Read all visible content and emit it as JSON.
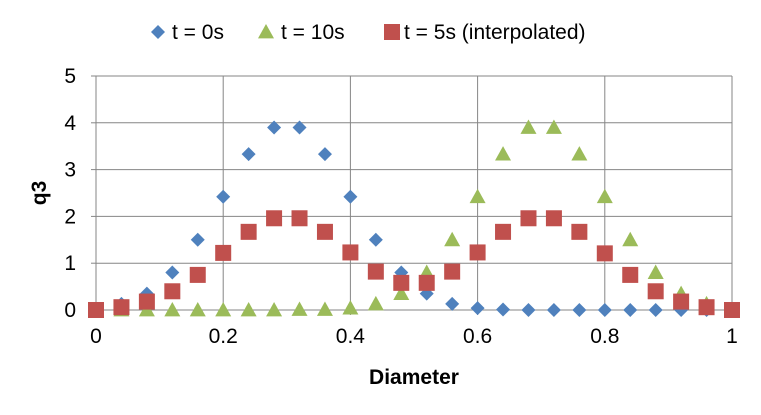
{
  "chart_data": {
    "type": "scatter",
    "title": "",
    "xlabel": "Diameter",
    "ylabel": "q3",
    "xlim": [
      0,
      1
    ],
    "ylim": [
      0,
      5
    ],
    "x_ticks": [
      0,
      0.2,
      0.4,
      0.6,
      0.8,
      1
    ],
    "x_tick_labels": [
      "0",
      "0.2",
      "0.4",
      "0.6",
      "0.8",
      "1"
    ],
    "y_ticks": [
      0,
      1,
      2,
      3,
      4,
      5
    ],
    "y_tick_labels": [
      "0",
      "1",
      "2",
      "3",
      "4",
      "5"
    ],
    "grid": "major gridlines on both axes",
    "legend_position": "top",
    "series": [
      {
        "name": "t = 0s",
        "marker": "diamond",
        "color": "#4F81BD",
        "x": [
          0,
          0.04,
          0.08,
          0.12,
          0.16,
          0.2,
          0.24,
          0.28,
          0.32,
          0.36,
          0.4,
          0.44,
          0.48,
          0.52,
          0.56,
          0.6,
          0.64,
          0.68,
          0.72,
          0.76,
          0.8,
          0.84,
          0.88,
          0.92,
          0.96,
          1
        ],
        "y": [
          0,
          0.13,
          0.35,
          0.8,
          1.5,
          2.42,
          3.33,
          3.9,
          3.9,
          3.33,
          2.42,
          1.5,
          0.8,
          0.35,
          0.13,
          0.04,
          0.01,
          0,
          0,
          0,
          0,
          0,
          0,
          0,
          0,
          0
        ]
      },
      {
        "name": "t = 10s",
        "marker": "triangle",
        "color": "#9BBB59",
        "x": [
          0,
          0.04,
          0.08,
          0.12,
          0.16,
          0.2,
          0.24,
          0.28,
          0.32,
          0.36,
          0.4,
          0.44,
          0.48,
          0.52,
          0.56,
          0.6,
          0.64,
          0.68,
          0.72,
          0.76,
          0.8,
          0.84,
          0.88,
          0.92,
          0.96,
          1
        ],
        "y": [
          0,
          0,
          0,
          0,
          0,
          0,
          0,
          0,
          0.01,
          0.01,
          0.04,
          0.13,
          0.35,
          0.8,
          1.5,
          2.42,
          3.33,
          3.9,
          3.9,
          3.33,
          2.42,
          1.5,
          0.8,
          0.35,
          0.13,
          0
        ]
      },
      {
        "name": "t = 5s (interpolated)",
        "marker": "square",
        "color": "#C0504D",
        "x": [
          0,
          0.04,
          0.08,
          0.12,
          0.16,
          0.2,
          0.24,
          0.28,
          0.32,
          0.36,
          0.4,
          0.44,
          0.48,
          0.52,
          0.56,
          0.6,
          0.64,
          0.68,
          0.72,
          0.76,
          0.8,
          0.84,
          0.88,
          0.92,
          0.96,
          1
        ],
        "y": [
          0,
          0.06,
          0.18,
          0.4,
          0.75,
          1.22,
          1.67,
          1.96,
          1.96,
          1.67,
          1.23,
          0.82,
          0.58,
          0.58,
          0.82,
          1.23,
          1.67,
          1.96,
          1.96,
          1.67,
          1.21,
          0.75,
          0.4,
          0.18,
          0.06,
          0
        ]
      }
    ]
  }
}
